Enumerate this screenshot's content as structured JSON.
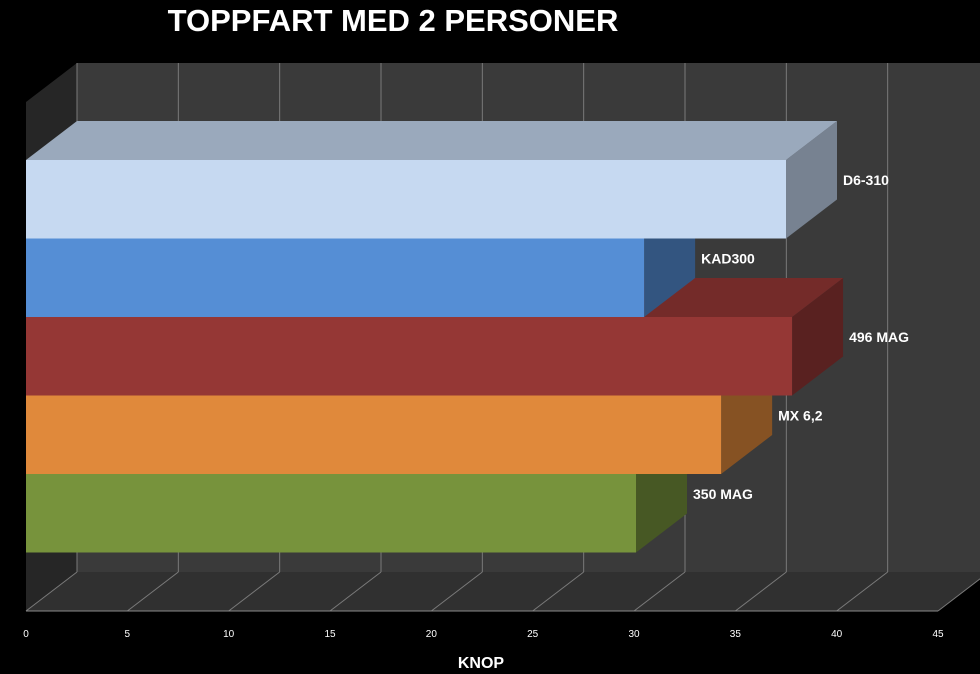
{
  "chart_data": {
    "type": "bar",
    "orientation": "horizontal",
    "three_d": true,
    "title": "TOPPFART MED 2 PERSONER",
    "xlabel": "KNOP",
    "ylabel": "",
    "xlim": [
      0,
      45
    ],
    "xticks": [
      0,
      5,
      10,
      15,
      20,
      25,
      30,
      35,
      40,
      45
    ],
    "grid": true,
    "legend": "none",
    "categories": [
      "D6-310",
      "KAD300",
      "496 MAG",
      "MX 6,2",
      "350 MAG"
    ],
    "values": [
      37.5,
      30.5,
      37.8,
      34.3,
      30.1
    ],
    "colors": [
      "#c6d9f1",
      "#558ed5",
      "#953735",
      "#e0893b",
      "#77933c"
    ]
  }
}
